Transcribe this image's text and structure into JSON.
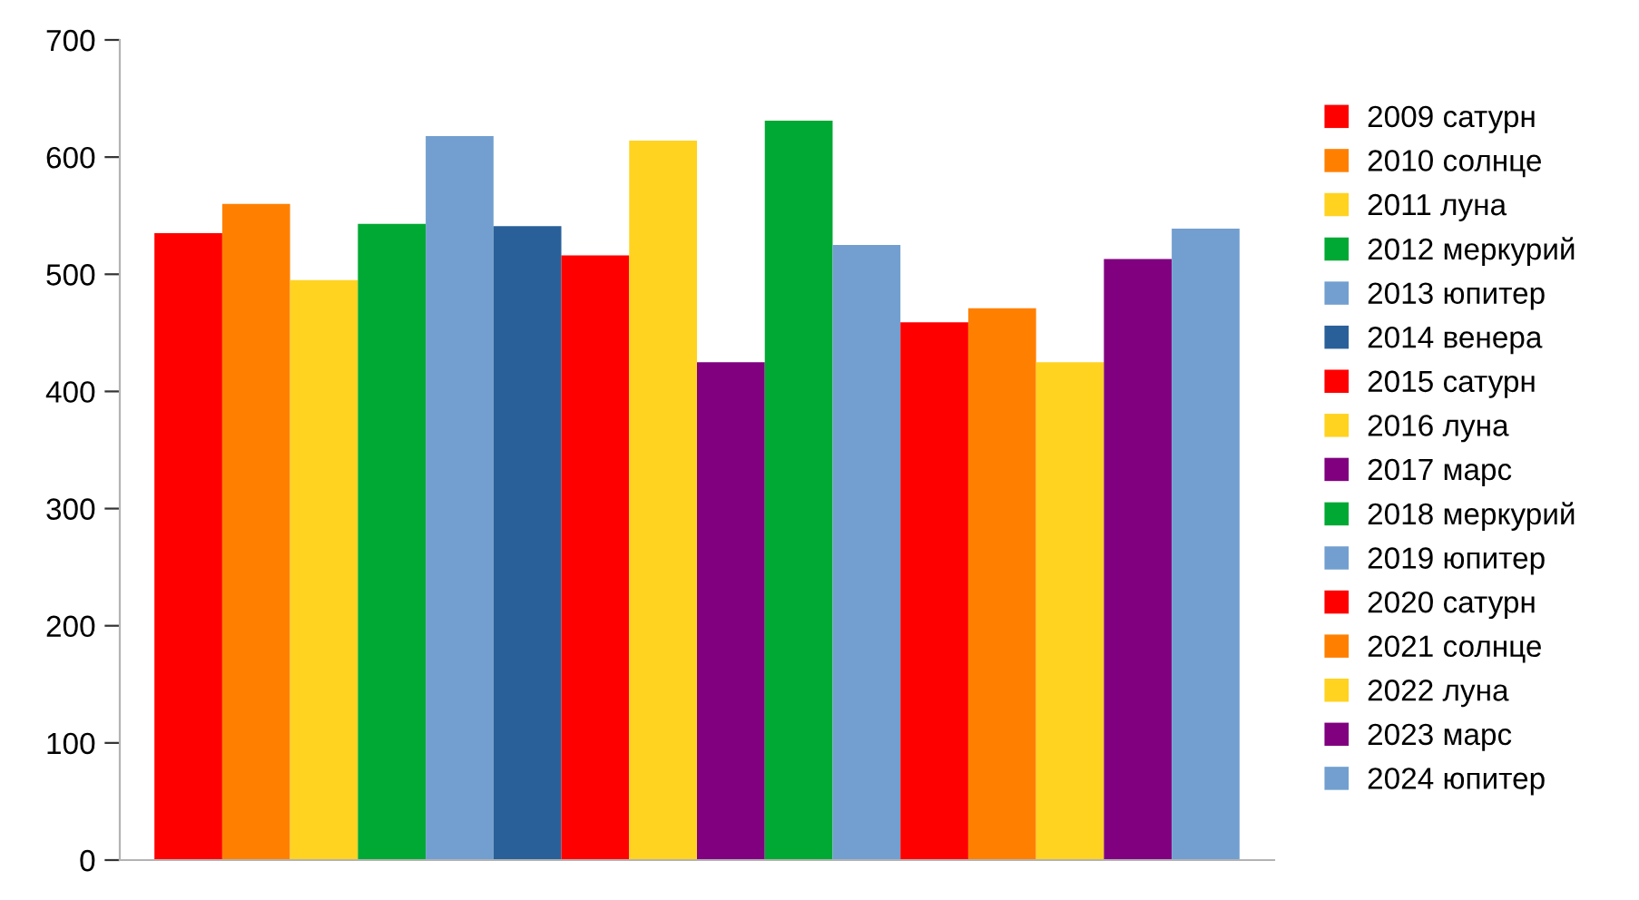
{
  "chart_data": {
    "type": "bar",
    "categories": [
      null
    ],
    "ylim": [
      0,
      700
    ],
    "yticks": [
      0,
      100,
      200,
      300,
      400,
      500,
      600,
      700
    ],
    "grid": false,
    "legend": "right",
    "series": [
      {
        "name": "2009 сатурн",
        "color": "#ff0000",
        "values": [
          535
        ]
      },
      {
        "name": "2010 солнце",
        "color": "#ff8000",
        "values": [
          560
        ]
      },
      {
        "name": "2011 луна",
        "color": "#ffd320",
        "values": [
          495
        ]
      },
      {
        "name": "2012 меркурий",
        "color": "#00a933",
        "values": [
          543
        ]
      },
      {
        "name": "2013 юпитер",
        "color": "#729fcf",
        "values": [
          618
        ]
      },
      {
        "name": "2014 венера",
        "color": "#2a6099",
        "values": [
          541
        ]
      },
      {
        "name": "2015 сатурн",
        "color": "#ff0000",
        "values": [
          516
        ]
      },
      {
        "name": "2016 луна",
        "color": "#ffd320",
        "values": [
          614
        ]
      },
      {
        "name": "2017 марс",
        "color": "#800080",
        "values": [
          425
        ]
      },
      {
        "name": "2018 меркурий",
        "color": "#00a933",
        "values": [
          631
        ]
      },
      {
        "name": "2019 юпитер",
        "color": "#729fcf",
        "values": [
          525
        ]
      },
      {
        "name": "2020 сатурн",
        "color": "#ff0000",
        "values": [
          459
        ]
      },
      {
        "name": "2021 солнце",
        "color": "#ff8000",
        "values": [
          471
        ]
      },
      {
        "name": "2022 луна",
        "color": "#ffd320",
        "values": [
          425
        ]
      },
      {
        "name": "2023 марс",
        "color": "#800080",
        "values": [
          513
        ]
      },
      {
        "name": "2024 юпитер",
        "color": "#729fcf",
        "values": [
          539
        ]
      }
    ]
  }
}
